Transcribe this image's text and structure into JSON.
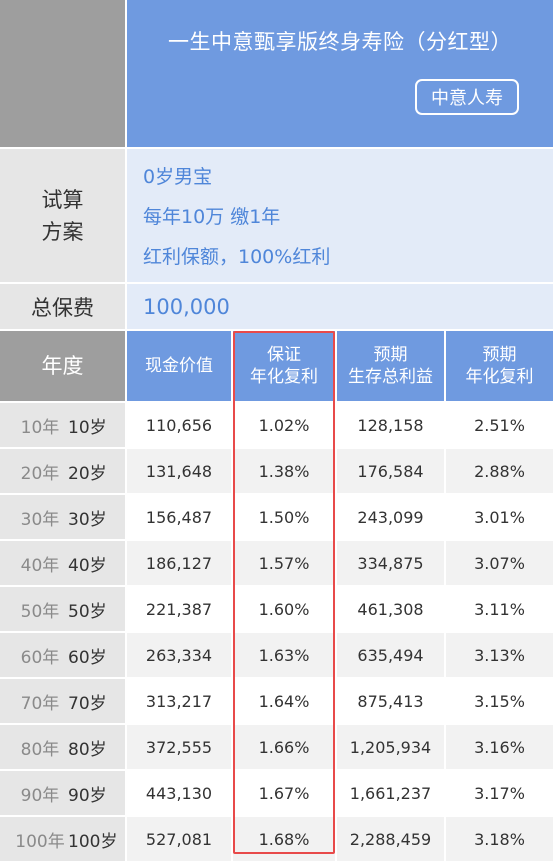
{
  "header": {
    "title": "一生中意甄享版终身寿险（分红型）",
    "company_badge": "中意人寿"
  },
  "plan": {
    "label_line1": "试算",
    "label_line2": "方案",
    "lines": [
      "0岁男宝",
      "每年10万 缴1年",
      "红利保额，100%红利"
    ]
  },
  "premium": {
    "label": "总保费",
    "value": "100,000"
  },
  "table": {
    "headers": {
      "year": "年度",
      "cash_value": "现金价值",
      "guaranteed_rate_1": "保证",
      "guaranteed_rate_2": "年化复利",
      "expected_benefit_1": "预期",
      "expected_benefit_2": "生存总利益",
      "expected_rate_1": "预期",
      "expected_rate_2": "年化复利"
    },
    "rows": [
      {
        "year": "10年",
        "age": "10岁",
        "cash": "110,656",
        "g_rate": "1.02%",
        "benefit": "128,158",
        "e_rate": "2.51%"
      },
      {
        "year": "20年",
        "age": "20岁",
        "cash": "131,648",
        "g_rate": "1.38%",
        "benefit": "176,584",
        "e_rate": "2.88%"
      },
      {
        "year": "30年",
        "age": "30岁",
        "cash": "156,487",
        "g_rate": "1.50%",
        "benefit": "243,099",
        "e_rate": "3.01%"
      },
      {
        "year": "40年",
        "age": "40岁",
        "cash": "186,127",
        "g_rate": "1.57%",
        "benefit": "334,875",
        "e_rate": "3.07%"
      },
      {
        "year": "50年",
        "age": "50岁",
        "cash": "221,387",
        "g_rate": "1.60%",
        "benefit": "461,308",
        "e_rate": "3.11%"
      },
      {
        "year": "60年",
        "age": "60岁",
        "cash": "263,334",
        "g_rate": "1.63%",
        "benefit": "635,494",
        "e_rate": "3.13%"
      },
      {
        "year": "70年",
        "age": "70岁",
        "cash": "313,217",
        "g_rate": "1.64%",
        "benefit": "875,413",
        "e_rate": "3.15%"
      },
      {
        "year": "80年",
        "age": "80岁",
        "cash": "372,555",
        "g_rate": "1.66%",
        "benefit": "1,205,934",
        "e_rate": "3.16%"
      },
      {
        "year": "90年",
        "age": "90岁",
        "cash": "443,130",
        "g_rate": "1.67%",
        "benefit": "1,661,237",
        "e_rate": "3.17%"
      },
      {
        "year": "100年",
        "age": "100岁",
        "cash": "527,081",
        "g_rate": "1.68%",
        "benefit": "2,288,459",
        "e_rate": "3.18%"
      }
    ]
  },
  "colors": {
    "header_blue": "#6f9ae0",
    "header_gray": "#9e9e9e",
    "plan_text_blue": "#4f86d9",
    "highlight_red": "#e84a4a"
  }
}
